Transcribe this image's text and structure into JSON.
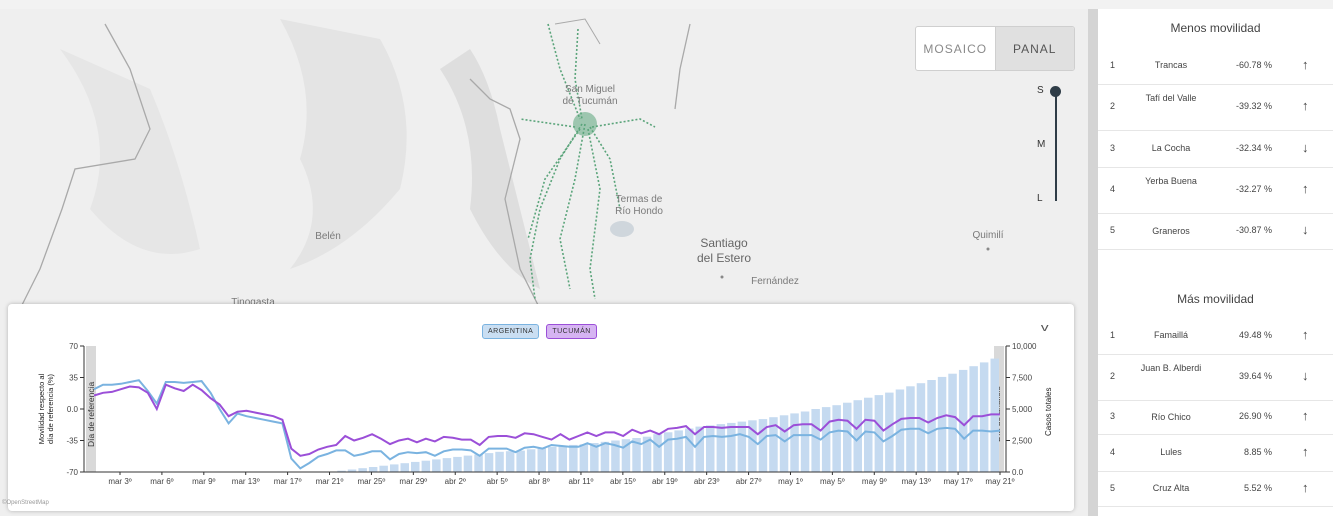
{
  "view_toggle": {
    "mosaic": "MOSAICO",
    "panel": "PANAL"
  },
  "size_slider": {
    "s": "S",
    "m": "M",
    "l": "L",
    "selected": "S"
  },
  "map_labels": {
    "san_miguel": "San Miguel",
    "de_tucuman": "de Tucumán",
    "termas": "Termas de",
    "rio_hondo": "Río Hondo",
    "belen": "Belén",
    "santiago": "Santiago",
    "del_estero": "del Estero",
    "fernandez": "Fernández",
    "quimili": "Quimilí",
    "tinogasta": "Tinogasta"
  },
  "chart_legend": {
    "argentina": "ARGENTINA",
    "tucuman": "TUCUMÁN"
  },
  "chart_labels": {
    "ref_day": "Día de referencia",
    "analysis_day": "Día de análisis"
  },
  "attribution": "©OpenStreetMap",
  "chart_data": {
    "type": "line",
    "ylabel": "Movilidad respecto al día de referencia (%)",
    "y2label": "Casos totales",
    "ylim": [
      -70,
      70
    ],
    "yticks": [
      "70",
      "35",
      "0.0",
      "-35",
      "-70"
    ],
    "y2lim": [
      0,
      10000
    ],
    "y2ticks": [
      "10,000",
      "7,500",
      "5,000",
      "2,500",
      "0.0"
    ],
    "xticks": [
      "mar 3º",
      "mar 6º",
      "mar 9º",
      "mar 13º",
      "mar 17º",
      "mar 21º",
      "mar 25º",
      "mar 29º",
      "abr 2º",
      "abr 5º",
      "abr 8º",
      "abr 11º",
      "abr 15º",
      "abr 19º",
      "abr 23º",
      "abr 27º",
      "may 1º",
      "may 5º",
      "may 9º",
      "may 13º",
      "may 17º",
      "may 21º"
    ],
    "series": [
      {
        "name": "ARGENTINA",
        "color": "#7ab3e0",
        "values": [
          22,
          27,
          27,
          28,
          30,
          32,
          20,
          6,
          30,
          30,
          29,
          30,
          31,
          18,
          0,
          -16,
          -5,
          -8,
          -10,
          -12,
          -14,
          -16,
          -55,
          -66,
          -60,
          -53,
          -50,
          -46,
          -46,
          -52,
          -50,
          -47,
          -47,
          -56,
          -50,
          -48,
          -49,
          -48,
          -52,
          -47,
          -45,
          -45,
          -46,
          -52,
          -44,
          -44,
          -44,
          -48,
          -43,
          -42,
          -44,
          -40,
          -41,
          -42,
          -42,
          -38,
          -42,
          -38,
          -40,
          -43,
          -36,
          -39,
          -34,
          -42,
          -34,
          -33,
          -31,
          -42,
          -31,
          -30,
          -31,
          -30,
          -28,
          -31,
          -39,
          -30,
          -29,
          -36,
          -29,
          -29,
          -29,
          -34,
          -26,
          -24,
          -25,
          -35,
          -25,
          -26,
          -36,
          -30,
          -23,
          -22,
          -22,
          -27,
          -22,
          -21,
          -22,
          -33,
          -24,
          -24,
          -25,
          -24
        ]
      },
      {
        "name": "TUCUMÁN",
        "color": "#9b4fd8",
        "values": [
          15,
          18,
          19,
          22,
          25,
          24,
          18,
          0,
          27,
          23,
          20,
          27,
          21,
          12,
          5,
          -8,
          -3,
          -2,
          -4,
          -6,
          -8,
          -12,
          -44,
          -52,
          -50,
          -45,
          -42,
          -40,
          -30,
          -35,
          -32,
          -28,
          -33,
          -39,
          -35,
          -33,
          -37,
          -33,
          -36,
          -31,
          -32,
          -34,
          -34,
          -40,
          -31,
          -30,
          -30,
          -32,
          -27,
          -28,
          -31,
          -34,
          -28,
          -34,
          -30,
          -26,
          -30,
          -26,
          -26,
          -30,
          -23,
          -27,
          -24,
          -28,
          -22,
          -21,
          -19,
          -28,
          -20,
          -20,
          -21,
          -20,
          -20,
          -20,
          -28,
          -20,
          -18,
          -25,
          -18,
          -17,
          -17,
          -24,
          -14,
          -12,
          -13,
          -22,
          -12,
          -13,
          -24,
          -17,
          -11,
          -10,
          -10,
          -15,
          -10,
          -7,
          -9,
          -18,
          -8,
          -8,
          -6,
          -6
        ]
      },
      {
        "name": "Casos totales",
        "type": "bar",
        "color": "#c5daf0",
        "values": [
          0,
          0,
          0,
          0,
          0,
          0,
          0,
          0,
          0,
          0,
          0,
          0,
          0,
          0,
          0,
          0,
          0,
          0,
          0,
          0,
          0,
          0,
          0,
          100,
          200,
          300,
          400,
          500,
          600,
          700,
          800,
          900,
          1000,
          1100,
          1200,
          1300,
          1400,
          1500,
          1600,
          1650,
          1700,
          1800,
          1900,
          2000,
          2100,
          2150,
          2200,
          2300,
          2400,
          2500,
          2600,
          2700,
          2800,
          3000,
          3150,
          3300,
          3450,
          3600,
          3700,
          3800,
          3900,
          4000,
          4100,
          4200,
          4350,
          4500,
          4650,
          4800,
          5000,
          5150,
          5300,
          5500,
          5700,
          5900,
          6100,
          6300,
          6550,
          6800,
          7050,
          7300,
          7550,
          7800,
          8100,
          8400,
          8700,
          9000
        ]
      }
    ]
  },
  "ranking": {
    "less_title": "Menos movilidad",
    "less": [
      {
        "rank": "1",
        "name": "Trancas",
        "value": "-60.78 %",
        "trend": "up"
      },
      {
        "rank": "2",
        "name": "Tafí del Valle",
        "value": "-39.32 %",
        "trend": "up"
      },
      {
        "rank": "3",
        "name": "La Cocha",
        "value": "-32.34 %",
        "trend": "down"
      },
      {
        "rank": "4",
        "name": "Yerba Buena",
        "value": "-32.27 %",
        "trend": "up"
      },
      {
        "rank": "5",
        "name": "Graneros",
        "value": "-30.87 %",
        "trend": "down"
      }
    ],
    "more_title": "Más movilidad",
    "more": [
      {
        "rank": "1",
        "name": "Famaillá",
        "value": "49.48 %",
        "trend": "up"
      },
      {
        "rank": "2",
        "name": "Juan B. Alberdi",
        "value": "39.64 %",
        "trend": "down"
      },
      {
        "rank": "3",
        "name": "Río Chico",
        "value": "26.90 %",
        "trend": "up"
      },
      {
        "rank": "4",
        "name": "Lules",
        "value": "8.85 %",
        "trend": "up"
      },
      {
        "rank": "5",
        "name": "Cruz Alta",
        "value": "5.52 %",
        "trend": "up"
      }
    ],
    "arrow_up": "↑",
    "arrow_down": "↓"
  }
}
